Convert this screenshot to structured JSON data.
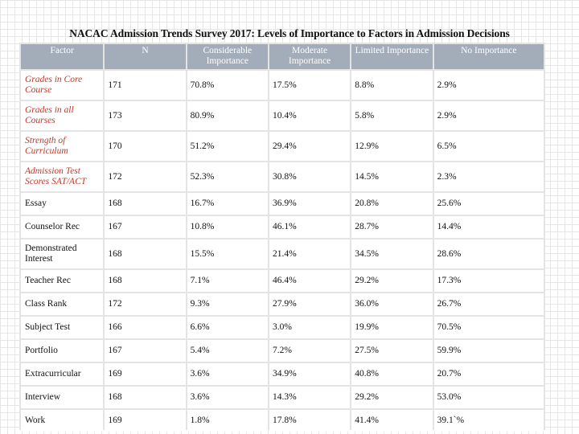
{
  "title": "NACAC Admission Trends Survey 2017: Levels of Importance to Factors in Admission Decisions",
  "table": {
    "headers": [
      "Factor",
      "N",
      "Considerable Importance",
      "Moderate Importance",
      "Limited Importance",
      "No Importance"
    ],
    "rows": [
      {
        "factor": "Grades in Core Course",
        "italic": true,
        "cells": [
          "171",
          "70.8%",
          "17.5%",
          "8.8%",
          "2.9%"
        ]
      },
      {
        "factor": "Grades in all Courses",
        "italic": true,
        "cells": [
          "173",
          "80.9%",
          "10.4%",
          "5.8%",
          "2.9%"
        ]
      },
      {
        "factor": "Strength of Curriculum",
        "italic": true,
        "cells": [
          "170",
          "51.2%",
          "29.4%",
          "12.9%",
          "6.5%"
        ]
      },
      {
        "factor": "Admission Test Scores SAT/ACT",
        "italic": true,
        "cells": [
          "172",
          "52.3%",
          "30.8%",
          "14.5%",
          "2.3%"
        ]
      },
      {
        "factor": "Essay",
        "italic": false,
        "cells": [
          "168",
          "16.7%",
          "36.9%",
          "20.8%",
          "25.6%"
        ]
      },
      {
        "factor": "Counselor Rec",
        "italic": false,
        "cells": [
          "167",
          "10.8%",
          "46.1%",
          "28.7%",
          "14.4%"
        ]
      },
      {
        "factor": "Demonstrated Interest",
        "italic": false,
        "cells": [
          "168",
          "15.5%",
          "21.4%",
          "34.5%",
          "28.6%"
        ]
      },
      {
        "factor": "Teacher Rec",
        "italic": false,
        "cells": [
          "168",
          "7.1%",
          "46.4%",
          "29.2%",
          "17.3%"
        ]
      },
      {
        "factor": "Class Rank",
        "italic": false,
        "cells": [
          "172",
          "9.3%",
          "27.9%",
          "36.0%",
          "26.7%"
        ]
      },
      {
        "factor": "Subject Test",
        "italic": false,
        "cells": [
          "166",
          "6.6%",
          "3.0%",
          "19.9%",
          "70.5%"
        ]
      },
      {
        "factor": "Portfolio",
        "italic": false,
        "cells": [
          "167",
          "5.4%",
          "7.2%",
          "27.5%",
          "59.9%"
        ]
      },
      {
        "factor": "Extracurricular",
        "italic": false,
        "cells": [
          "169",
          "3.6%",
          "34.9%",
          "40.8%",
          "20.7%"
        ]
      },
      {
        "factor": "Interview",
        "italic": false,
        "cells": [
          "168",
          "3.6%",
          "14.3%",
          "29.2%",
          "53.0%"
        ]
      },
      {
        "factor": "Work",
        "italic": false,
        "cells": [
          "169",
          "1.8%",
          "17.8%",
          "41.4%",
          "39.1`%"
        ]
      }
    ]
  },
  "colors": {
    "header_bg": "#a3acb9",
    "header_text": "#ffffff",
    "factor_italic_text": "#c0392b",
    "grid_line": "#e4e4e4"
  }
}
